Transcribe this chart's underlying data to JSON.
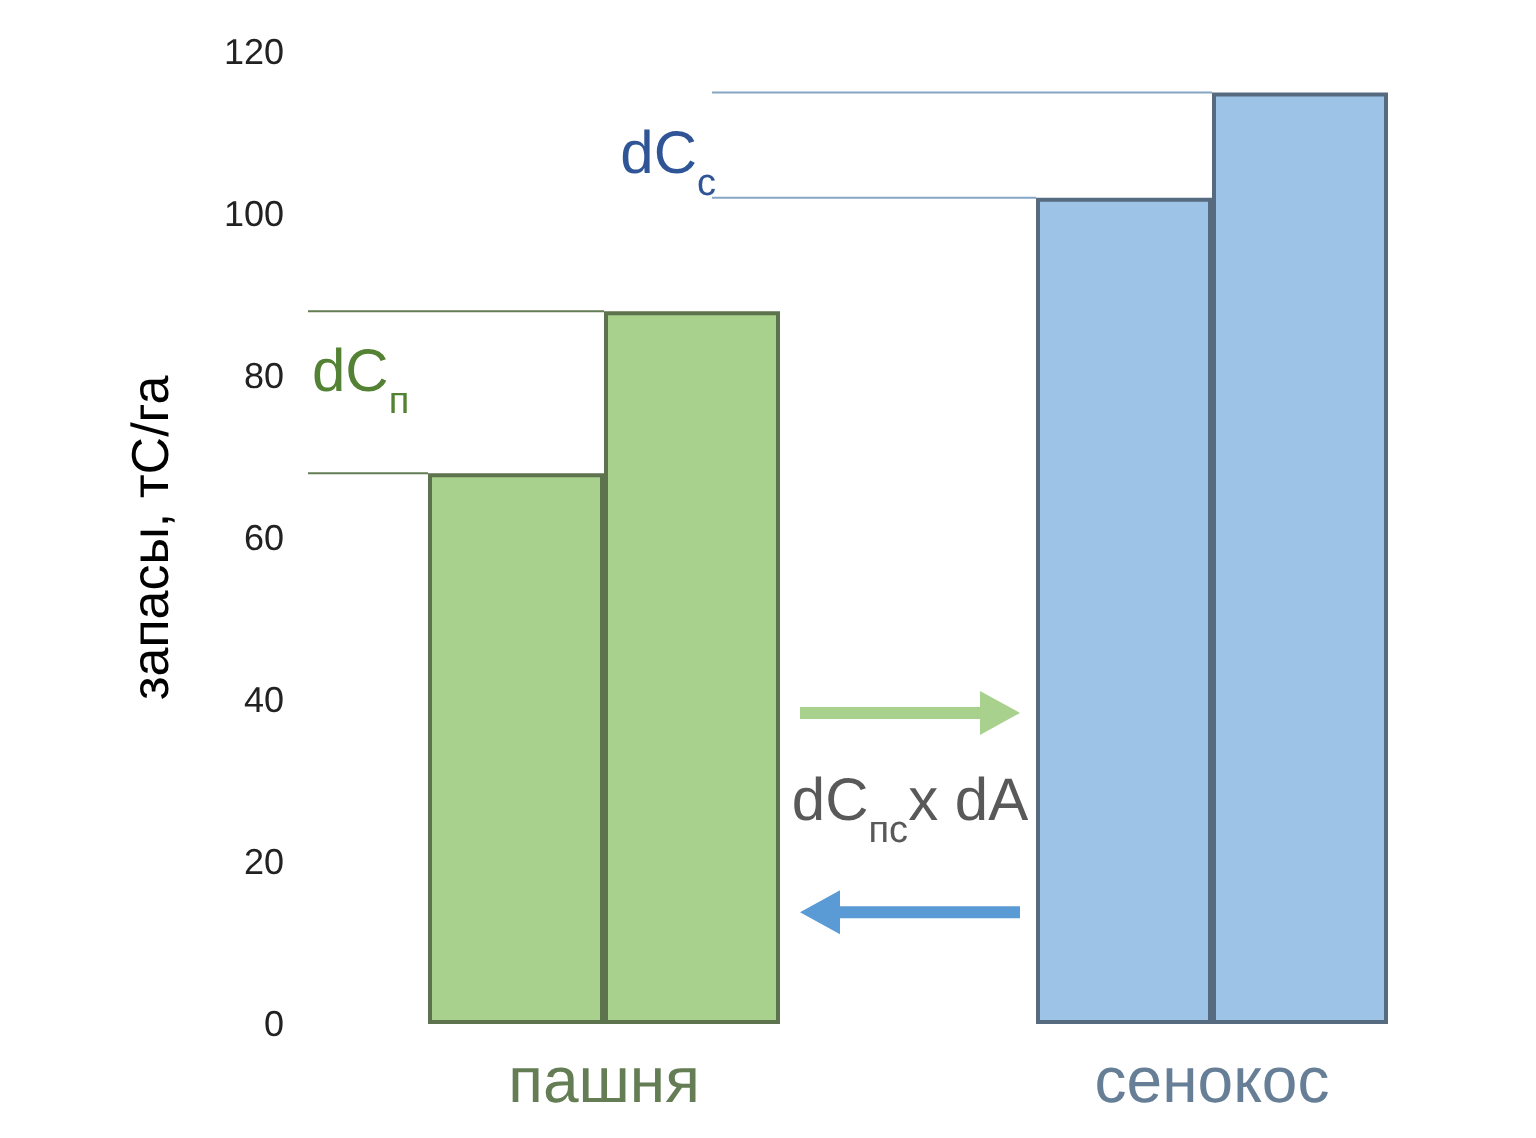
{
  "chart_data": {
    "type": "bar",
    "ylabel": "запасы, тС/га",
    "categories": [
      "пашня",
      "сенокос"
    ],
    "series": [
      {
        "colors": [
          "#a9d18e",
          "#9dc3e6"
        ],
        "values": [
          68,
          102
        ]
      },
      {
        "colors": [
          "#a9d18e",
          "#9dc3e6"
        ],
        "values": [
          88,
          115
        ]
      }
    ],
    "ylim": [
      0,
      120
    ],
    "yticks": [
      0,
      20,
      40,
      60,
      80,
      100,
      120
    ],
    "grid": false,
    "annotations": [
      {
        "text": "dC$_{п}$",
        "x": "пашня",
        "y": 88
      },
      {
        "text": "dC$_{с}$",
        "x": "сенокос",
        "y": 115
      },
      "dC$_{пс}$x dA"
    ]
  }
}
